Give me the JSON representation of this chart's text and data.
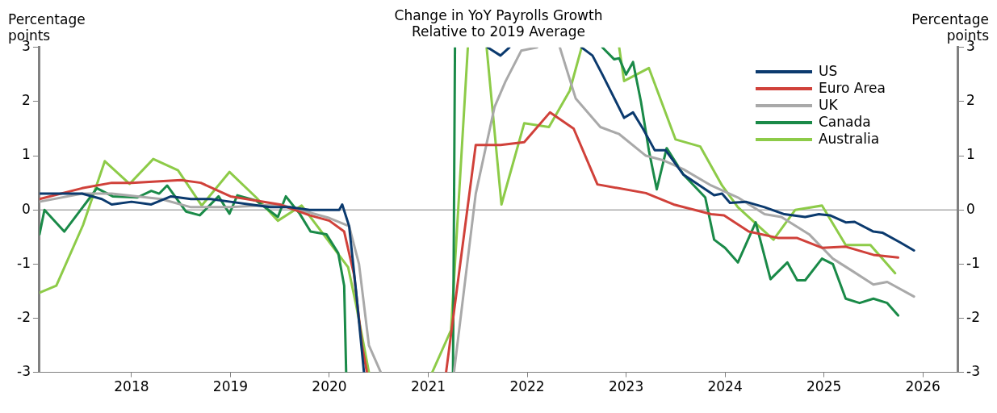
{
  "chart_data": {
    "type": "line",
    "title": "Change in YoY Payrolls Growth\nRelative to 2019 Average",
    "ylabel": "Percentage points",
    "y2label": "Percentage points",
    "xlim": [
      2017.07,
      2026.35
    ],
    "xticks": [
      2018,
      2019,
      2020,
      2021,
      2022,
      2023,
      2024,
      2025,
      2026
    ],
    "ylim": [
      -3,
      3
    ],
    "yticks": [
      -3,
      -2,
      -1,
      0,
      1,
      2,
      3
    ],
    "y2lim": [
      -3,
      3
    ],
    "y2ticks": [
      -3,
      -2,
      -1,
      0,
      1,
      2,
      3
    ],
    "legend": "top right",
    "line_style": "solid",
    "ref_lines": [
      {
        "axis": "y",
        "value": 0,
        "color": "#808080"
      }
    ],
    "series": [
      {
        "name": "US",
        "color": "#0b3a6e",
        "x": [
          2017.07,
          2017.3,
          2017.5,
          2017.7,
          2017.8,
          2018.0,
          2018.2,
          2018.4,
          2018.6,
          2018.8,
          2019.0,
          2019.2,
          2019.4,
          2019.6,
          2019.8,
          2020.0,
          2020.1,
          2020.13,
          2020.2,
          2020.27,
          2020.35,
          2021.0,
          2021.6,
          2021.73,
          2021.82,
          2022.2,
          2022.55,
          2022.66,
          2022.76,
          2022.98,
          2023.07,
          2023.17,
          2023.29,
          2023.4,
          2023.58,
          2023.89,
          2023.97,
          2024.05,
          2024.21,
          2024.4,
          2024.6,
          2024.81,
          2024.95,
          2025.06,
          2025.22,
          2025.31,
          2025.5,
          2025.59,
          2025.77,
          2025.91
        ],
        "values": [
          0.3,
          0.3,
          0.3,
          0.2,
          0.1,
          0.15,
          0.1,
          0.25,
          0.2,
          0.2,
          0.15,
          0.1,
          0.05,
          0.05,
          0.0,
          0.0,
          0.0,
          0.1,
          -0.3,
          -1.5,
          -3,
          null,
          3,
          2.85,
          3,
          null,
          3,
          2.85,
          2.5,
          1.7,
          1.8,
          1.5,
          1.1,
          1.1,
          0.65,
          0.27,
          0.3,
          0.13,
          0.15,
          0.05,
          -0.08,
          -0.13,
          -0.08,
          -0.1,
          -0.23,
          -0.22,
          -0.4,
          -0.42,
          -0.6,
          -0.75
        ]
      },
      {
        "name": "Euro Area",
        "color": "#d0413a",
        "x": [
          2017.07,
          2017.5,
          2017.8,
          2018.0,
          2018.5,
          2018.7,
          2019.0,
          2019.5,
          2019.8,
          2020.0,
          2020.15,
          2020.25,
          2020.33,
          2020.38,
          2020.8,
          2021.18,
          2021.48,
          2021.73,
          2021.97,
          2022.23,
          2022.47,
          2022.71,
          2023.2,
          2023.48,
          2023.86,
          2023.99,
          2024.24,
          2024.54,
          2024.73,
          2024.98,
          2025.22,
          2025.5,
          2025.75
        ],
        "values": [
          0.2,
          0.4,
          0.5,
          0.5,
          0.55,
          0.5,
          0.25,
          0.1,
          -0.1,
          -0.2,
          -0.4,
          -1.2,
          -2.5,
          -3,
          null,
          -3,
          1.2,
          1.2,
          1.25,
          1.8,
          1.5,
          0.47,
          0.31,
          0.1,
          -0.08,
          -0.1,
          -0.4,
          -0.52,
          -0.52,
          -0.7,
          -0.68,
          -0.83,
          -0.88
        ]
      },
      {
        "name": "UK",
        "color": "#a9a9a9",
        "x": [
          2017.07,
          2017.5,
          2017.8,
          2018.3,
          2018.6,
          2019.0,
          2019.5,
          2019.8,
          2020.0,
          2020.2,
          2020.3,
          2020.4,
          2020.52,
          2020.9,
          2021.26,
          2021.48,
          2021.67,
          2021.78,
          2021.94,
          2022.1,
          2022.2,
          2022.33,
          2022.49,
          2022.74,
          2022.93,
          2023.2,
          2023.37,
          2023.58,
          2023.86,
          2024.13,
          2024.4,
          2024.57,
          2024.85,
          2025.09,
          2025.28,
          2025.5,
          2025.64,
          2025.91
        ],
        "values": [
          0.15,
          0.3,
          0.3,
          0.2,
          0.05,
          0.05,
          0.1,
          -0.05,
          -0.15,
          -0.3,
          -1.0,
          -2.5,
          -3,
          null,
          -3,
          0.3,
          1.9,
          2.37,
          2.94,
          3,
          null,
          3,
          2.06,
          1.53,
          1.4,
          1.0,
          0.92,
          0.75,
          0.45,
          0.23,
          -0.08,
          -0.13,
          -0.45,
          -0.9,
          -1.12,
          -1.38,
          -1.33,
          -1.6
        ]
      },
      {
        "name": "Canada",
        "color": "#1a8a48",
        "x": [
          2017.07,
          2017.12,
          2017.32,
          2017.54,
          2017.65,
          2017.81,
          2018.06,
          2018.2,
          2018.28,
          2018.36,
          2018.55,
          2018.69,
          2018.88,
          2018.99,
          2019.07,
          2019.26,
          2019.48,
          2019.56,
          2019.7,
          2019.81,
          2019.97,
          2020.09,
          2020.15,
          2020.17,
          2020.7,
          2021.25,
          2021.27,
          2022.0,
          2022.76,
          2022.88,
          2022.93,
          2023.0,
          2023.07,
          2023.15,
          2023.23,
          2023.31,
          2023.41,
          2023.58,
          2023.8,
          2023.89,
          2024.0,
          2024.13,
          2024.31,
          2024.46,
          2024.63,
          2024.73,
          2024.81,
          2024.98,
          2025.09,
          2025.22,
          2025.36,
          2025.5,
          2025.64,
          2025.75
        ],
        "values": [
          -0.45,
          0.0,
          -0.4,
          0.13,
          0.4,
          0.25,
          0.23,
          0.35,
          0.3,
          0.45,
          -0.03,
          -0.1,
          0.25,
          -0.07,
          0.27,
          0.17,
          -0.13,
          0.25,
          -0.07,
          -0.4,
          -0.45,
          -0.8,
          -1.4,
          -3,
          null,
          -3,
          3,
          null,
          3,
          2.78,
          2.8,
          2.5,
          2.73,
          2.0,
          1.1,
          0.38,
          1.14,
          0.65,
          0.23,
          -0.55,
          -0.7,
          -0.97,
          -0.23,
          -1.28,
          -0.97,
          -1.3,
          -1.3,
          -0.9,
          -1.0,
          -1.64,
          -1.72,
          -1.64,
          -1.72,
          -1.95
        ]
      },
      {
        "name": "Australia",
        "color": "#8dcb48",
        "x": [
          2017.07,
          2017.24,
          2017.51,
          2017.73,
          2017.98,
          2018.22,
          2018.47,
          2018.71,
          2018.99,
          2019.26,
          2019.48,
          2019.72,
          2019.92,
          2020.19,
          2020.27,
          2020.4,
          2020.7,
          2021.04,
          2021.23,
          2021.4,
          2021.5,
          2021.59,
          2021.74,
          2021.97,
          2022.22,
          2022.43,
          2022.55,
          2022.7,
          2022.93,
          2022.98,
          2023.23,
          2023.5,
          2023.75,
          2023.97,
          2024.13,
          2024.49,
          2024.71,
          2024.98,
          2025.22,
          2025.47,
          2025.72
        ],
        "values": [
          -1.53,
          -1.4,
          -0.28,
          0.9,
          0.48,
          0.94,
          0.73,
          0.08,
          0.7,
          0.23,
          -0.2,
          0.08,
          -0.4,
          -1.06,
          -1.75,
          -3,
          null,
          -3,
          -2.22,
          3,
          null,
          3,
          0.1,
          1.6,
          1.53,
          2.2,
          3,
          null,
          3,
          2.38,
          2.62,
          1.3,
          1.17,
          0.45,
          0.05,
          -0.55,
          0.0,
          0.08,
          -0.65,
          -0.65,
          -1.17
        ]
      }
    ]
  }
}
